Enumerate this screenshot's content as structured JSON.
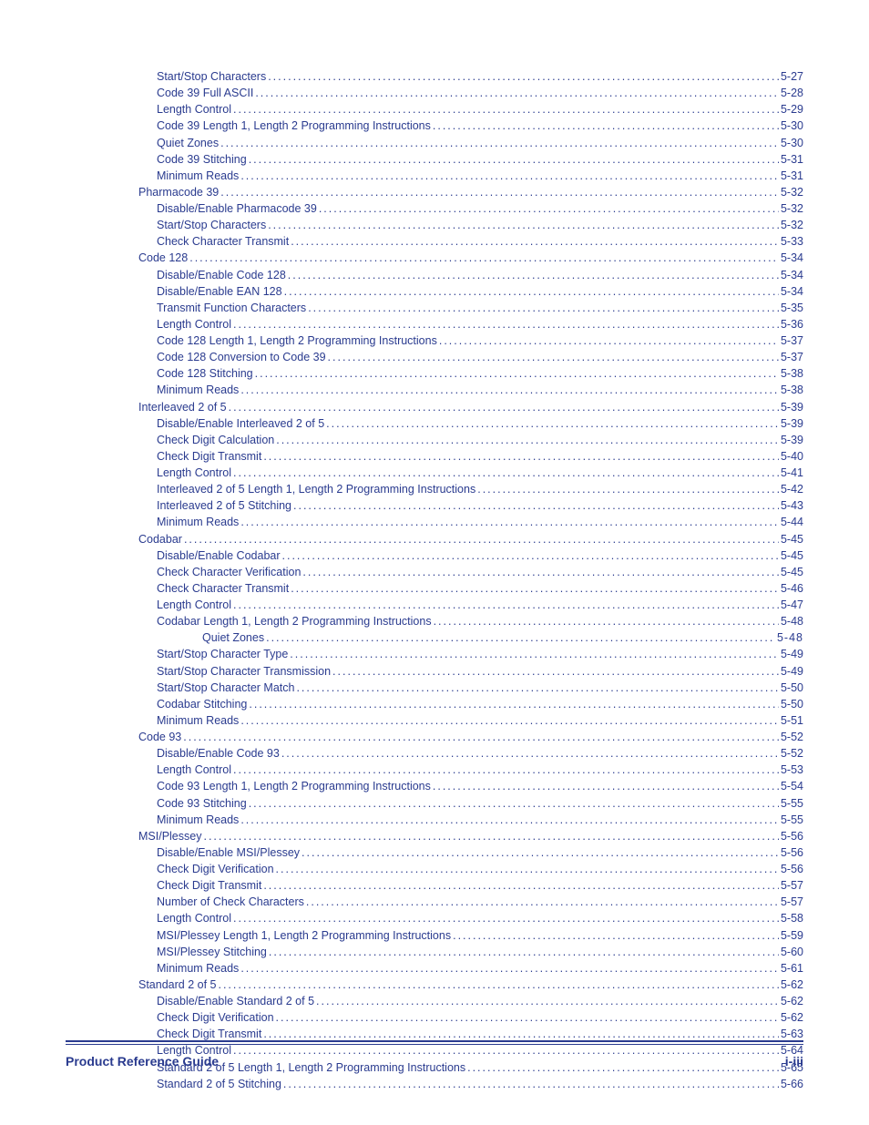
{
  "footer": {
    "left": "Product Reference Guide",
    "right": "i-iii"
  },
  "colors": {
    "text": "#2a3b8f",
    "background": "#ffffff"
  },
  "entries": [
    {
      "indent": 2,
      "title": "Start/Stop Characters",
      "page": "5-27"
    },
    {
      "indent": 2,
      "title": "Code 39 Full ASCII",
      "page": "5-28"
    },
    {
      "indent": 2,
      "title": "Length Control",
      "page": "5-29"
    },
    {
      "indent": 2,
      "title": "Code 39 Length 1, Length 2 Programming Instructions",
      "page": "5-30"
    },
    {
      "indent": 2,
      "title": "Quiet Zones",
      "page": "5-30"
    },
    {
      "indent": 2,
      "title": "Code 39 Stitching",
      "page": "5-31"
    },
    {
      "indent": 2,
      "title": "Minimum Reads",
      "page": "5-31"
    },
    {
      "indent": 1,
      "title": "Pharmacode 39",
      "page": "5-32"
    },
    {
      "indent": 2,
      "title": "Disable/Enable Pharmacode 39",
      "page": "5-32"
    },
    {
      "indent": 2,
      "title": "Start/Stop Characters",
      "page": "5-32"
    },
    {
      "indent": 2,
      "title": "Check Character Transmit",
      "page": "5-33"
    },
    {
      "indent": 1,
      "title": "Code 128",
      "page": "5-34"
    },
    {
      "indent": 2,
      "title": "Disable/Enable Code 128",
      "page": "5-34"
    },
    {
      "indent": 2,
      "title": "Disable/Enable EAN 128",
      "page": "5-34"
    },
    {
      "indent": 2,
      "title": "Transmit Function Characters",
      "page": "5-35"
    },
    {
      "indent": 2,
      "title": "Length Control",
      "page": "5-36"
    },
    {
      "indent": 2,
      "title": "Code 128 Length 1, Length 2 Programming Instructions",
      "page": "5-37"
    },
    {
      "indent": 2,
      "title": "Code 128 Conversion to Code 39",
      "page": "5-37"
    },
    {
      "indent": 2,
      "title": "Code 128 Stitching",
      "page": "5-38"
    },
    {
      "indent": 2,
      "title": "Minimum Reads",
      "page": "5-38"
    },
    {
      "indent": 1,
      "title": "Interleaved 2 of 5",
      "page": "5-39"
    },
    {
      "indent": 2,
      "title": "Disable/Enable Interleaved 2 of 5",
      "page": "5-39"
    },
    {
      "indent": 2,
      "title": "Check Digit Calculation",
      "page": "5-39"
    },
    {
      "indent": 2,
      "title": "Check Digit Transmit",
      "page": "5-40"
    },
    {
      "indent": 2,
      "title": "Length Control",
      "page": "5-41"
    },
    {
      "indent": 2,
      "title": "Interleaved 2 of 5 Length 1, Length 2 Programming Instructions",
      "page": "5-42"
    },
    {
      "indent": 2,
      "title": "Interleaved 2 of 5 Stitching",
      "page": "5-43"
    },
    {
      "indent": 2,
      "title": "Minimum Reads",
      "page": "5-44"
    },
    {
      "indent": 1,
      "title": "Codabar",
      "page": "5-45"
    },
    {
      "indent": 2,
      "title": "Disable/Enable Codabar",
      "page": "5-45"
    },
    {
      "indent": 2,
      "title": "Check Character Verification",
      "page": "5-45"
    },
    {
      "indent": 2,
      "title": "Check Character Transmit",
      "page": "5-46"
    },
    {
      "indent": 2,
      "title": "Length Control",
      "page": "5-47"
    },
    {
      "indent": 2,
      "title": "Codabar Length 1, Length 2 Programming Instructions",
      "page": "5-48"
    },
    {
      "indent": 3,
      "title": "Quiet Zones",
      "page": " 5-48",
      "space": true
    },
    {
      "indent": 2,
      "title": "Start/Stop Character Type",
      "page": "5-49"
    },
    {
      "indent": 2,
      "title": "Start/Stop Character Transmission",
      "page": "5-49"
    },
    {
      "indent": 2,
      "title": "Start/Stop Character Match",
      "page": "5-50"
    },
    {
      "indent": 2,
      "title": "Codabar Stitching",
      "page": "5-50"
    },
    {
      "indent": 2,
      "title": "Minimum Reads",
      "page": "5-51"
    },
    {
      "indent": 1,
      "title": "Code 93",
      "page": "5-52"
    },
    {
      "indent": 2,
      "title": "Disable/Enable Code 93",
      "page": "5-52"
    },
    {
      "indent": 2,
      "title": "Length Control",
      "page": "5-53"
    },
    {
      "indent": 2,
      "title": "Code 93 Length 1, Length 2 Programming Instructions",
      "page": "5-54"
    },
    {
      "indent": 2,
      "title": "Code 93 Stitching",
      "page": "5-55"
    },
    {
      "indent": 2,
      "title": "Minimum Reads",
      "page": "5-55"
    },
    {
      "indent": 1,
      "title": "MSI/Plessey",
      "page": "5-56"
    },
    {
      "indent": 2,
      "title": "Disable/Enable MSI/Plessey",
      "page": "5-56"
    },
    {
      "indent": 2,
      "title": "Check Digit Verification",
      "page": "5-56"
    },
    {
      "indent": 2,
      "title": "Check Digit Transmit",
      "page": "5-57"
    },
    {
      "indent": 2,
      "title": "Number of Check Characters",
      "page": "5-57"
    },
    {
      "indent": 2,
      "title": "Length Control",
      "page": "5-58"
    },
    {
      "indent": 2,
      "title": "MSI/Plessey Length 1, Length 2 Programming Instructions",
      "page": "5-59"
    },
    {
      "indent": 2,
      "title": "MSI/Plessey Stitching",
      "page": "5-60"
    },
    {
      "indent": 2,
      "title": "Minimum Reads",
      "page": "5-61"
    },
    {
      "indent": 1,
      "title": "Standard 2 of 5",
      "page": "5-62"
    },
    {
      "indent": 2,
      "title": "Disable/Enable Standard 2 of 5",
      "page": "5-62"
    },
    {
      "indent": 2,
      "title": "Check Digit Verification",
      "page": "5-62"
    },
    {
      "indent": 2,
      "title": "Check Digit Transmit",
      "page": "5-63"
    },
    {
      "indent": 2,
      "title": "Length Control",
      "page": "5-64"
    },
    {
      "indent": 2,
      "title": "Standard 2 of 5 Length 1, Length 2 Programming Instructions",
      "page": "5-65"
    },
    {
      "indent": 2,
      "title": "Standard 2 of 5 Stitching",
      "page": "5-66"
    }
  ]
}
